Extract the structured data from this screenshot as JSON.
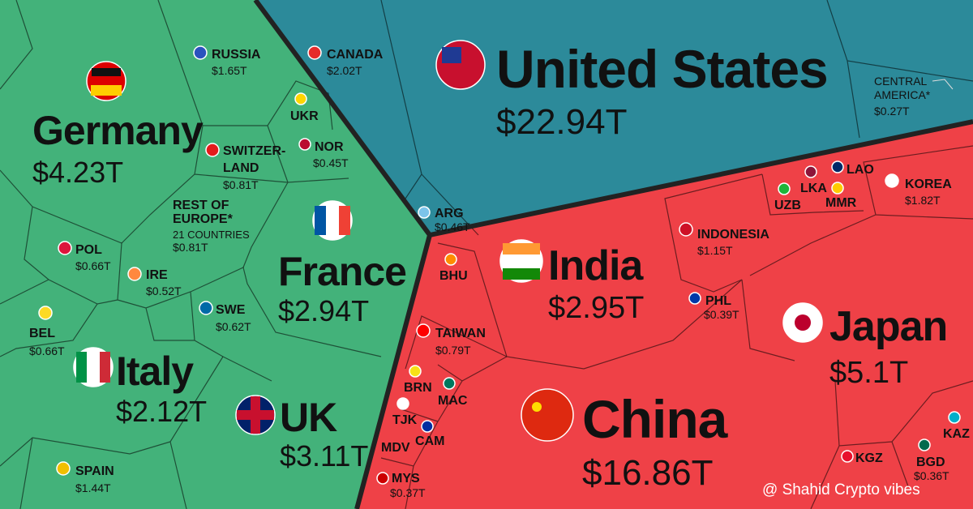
{
  "cells": [
    {
      "name": "United States",
      "value": "$22.94T"
    },
    {
      "name": "CANADA",
      "value": "$2.02T"
    },
    {
      "name": [
        "CENTRAL",
        "AMERICA*"
      ],
      "value": "$0.27T"
    },
    {
      "name": "ARG",
      "value": "$0.46T"
    },
    {
      "name": "Germany",
      "value": "$4.23T"
    },
    {
      "name": "RUSSIA",
      "value": "$1.65T"
    },
    {
      "name": "UKR"
    },
    {
      "name": [
        "SWITZER-",
        "LAND"
      ],
      "value": "$0.81T"
    },
    {
      "name": "NOR",
      "value": "$0.45T"
    },
    {
      "name": [
        "REST OF",
        "EUROPE*",
        "21 COUNTRIES"
      ],
      "value": "$0.81T"
    },
    {
      "name": "France",
      "value": "$2.94T"
    },
    {
      "name": "POL",
      "value": "$0.66T"
    },
    {
      "name": "IRE",
      "value": "$0.52T"
    },
    {
      "name": "SWE",
      "value": "$0.62T"
    },
    {
      "name": "BEL",
      "value": "$0.66T"
    },
    {
      "name": "Italy",
      "value": "$2.12T"
    },
    {
      "name": "UK",
      "value": "$3.11T"
    },
    {
      "name": "SPAIN",
      "value": "$1.44T"
    },
    {
      "name": "China",
      "value": "$16.86T"
    },
    {
      "name": "India",
      "value": "$2.95T"
    },
    {
      "name": "Japan",
      "value": "$5.1T"
    },
    {
      "name": "KOREA",
      "value": "$1.82T"
    },
    {
      "name": "INDONESIA",
      "value": "$1.15T"
    },
    {
      "name": "PHL",
      "value": "$0.39T"
    },
    {
      "name": "TAIWAN",
      "value": "$0.79T"
    },
    {
      "name": "BHU"
    },
    {
      "name": "UZB"
    },
    {
      "name": "LKA"
    },
    {
      "name": "LAO"
    },
    {
      "name": "MMR"
    },
    {
      "name": "BRN"
    },
    {
      "name": "MAC"
    },
    {
      "name": "TJK"
    },
    {
      "name": "CAM"
    },
    {
      "name": "MDV"
    },
    {
      "name": "MYS",
      "value": "$0.37T"
    },
    {
      "name": "KGZ"
    },
    {
      "name": "KAZ"
    },
    {
      "name": "BGD",
      "value": "$0.36T"
    }
  ],
  "watermark": "@ Shahid Crypto vibes"
}
